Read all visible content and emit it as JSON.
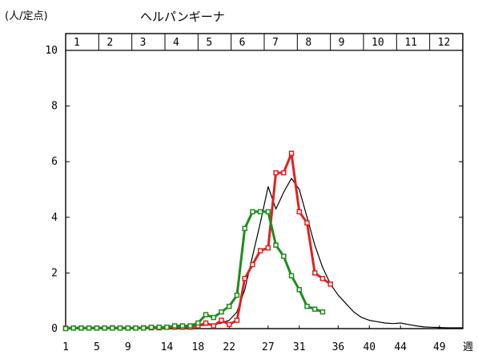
{
  "chart_data": {
    "type": "line",
    "title": "ヘルパンギーナ",
    "ylabel": "(人/定点)",
    "xlabel": "週",
    "xlim": [
      1,
      52
    ],
    "ylim": [
      0,
      10
    ],
    "yticks": [
      0,
      2,
      4,
      6,
      8,
      10
    ],
    "xticks": [
      1,
      5,
      9,
      14,
      18,
      22,
      27,
      31,
      36,
      40,
      44,
      49
    ],
    "month_labels": [
      "1",
      "2",
      "3",
      "4",
      "5",
      "6",
      "7",
      "8",
      "9",
      "10",
      "11",
      "12"
    ],
    "series": [
      {
        "color": "#000000",
        "marker": "none",
        "x": [
          1,
          2,
          3,
          4,
          5,
          6,
          7,
          8,
          9,
          10,
          11,
          12,
          13,
          14,
          15,
          16,
          17,
          18,
          19,
          20,
          21,
          22,
          23,
          24,
          25,
          26,
          27,
          28,
          29,
          30,
          31,
          32,
          33,
          34,
          35,
          36,
          37,
          38,
          39,
          40,
          41,
          42,
          43,
          44,
          45,
          46,
          47,
          48,
          49,
          50,
          51,
          52
        ],
        "values": [
          0.03,
          0.03,
          0.03,
          0.03,
          0.03,
          0.03,
          0.04,
          0.04,
          0.04,
          0.04,
          0.04,
          0.05,
          0.05,
          0.05,
          0.06,
          0.07,
          0.08,
          0.1,
          0.12,
          0.15,
          0.2,
          0.3,
          0.6,
          1.4,
          2.6,
          3.8,
          5.1,
          4.3,
          4.9,
          5.4,
          5.0,
          4.0,
          3.0,
          2.2,
          1.6,
          1.2,
          0.9,
          0.6,
          0.4,
          0.3,
          0.25,
          0.2,
          0.18,
          0.2,
          0.15,
          0.1,
          0.06,
          0.05,
          0.04,
          0.03,
          0.03,
          0.03
        ]
      },
      {
        "color": "#e02020",
        "marker": "square",
        "x": [
          1,
          2,
          3,
          4,
          5,
          6,
          7,
          8,
          9,
          10,
          11,
          12,
          13,
          14,
          15,
          16,
          17,
          18,
          19,
          20,
          21,
          22,
          23,
          24,
          25,
          26,
          27,
          28,
          29,
          30,
          31,
          32,
          33,
          34,
          35
        ],
        "values": [
          0.02,
          0.02,
          0.02,
          0.02,
          0.02,
          0.02,
          0.03,
          0.02,
          0.02,
          0.02,
          0.03,
          0.03,
          0.03,
          0.05,
          0.05,
          0.05,
          0.05,
          0.1,
          0.2,
          0.1,
          0.3,
          0.15,
          0.3,
          1.8,
          2.3,
          2.8,
          2.9,
          5.6,
          5.6,
          6.3,
          4.2,
          3.8,
          2.0,
          1.8,
          1.6
        ]
      },
      {
        "color": "#1c8c1c",
        "marker": "square",
        "x": [
          1,
          2,
          3,
          4,
          5,
          6,
          7,
          8,
          9,
          10,
          11,
          12,
          13,
          14,
          15,
          16,
          17,
          18,
          19,
          20,
          21,
          22,
          23,
          24,
          25,
          26,
          27,
          28,
          29,
          30,
          31,
          32,
          33,
          34
        ],
        "values": [
          0.0,
          0.02,
          0.02,
          0.02,
          0.02,
          0.02,
          0.02,
          0.02,
          0.02,
          0.02,
          0.02,
          0.05,
          0.05,
          0.05,
          0.1,
          0.1,
          0.1,
          0.2,
          0.5,
          0.4,
          0.6,
          0.8,
          1.2,
          3.6,
          4.2,
          4.2,
          4.2,
          3.0,
          2.6,
          1.9,
          1.4,
          0.8,
          0.7,
          0.6
        ]
      }
    ]
  }
}
